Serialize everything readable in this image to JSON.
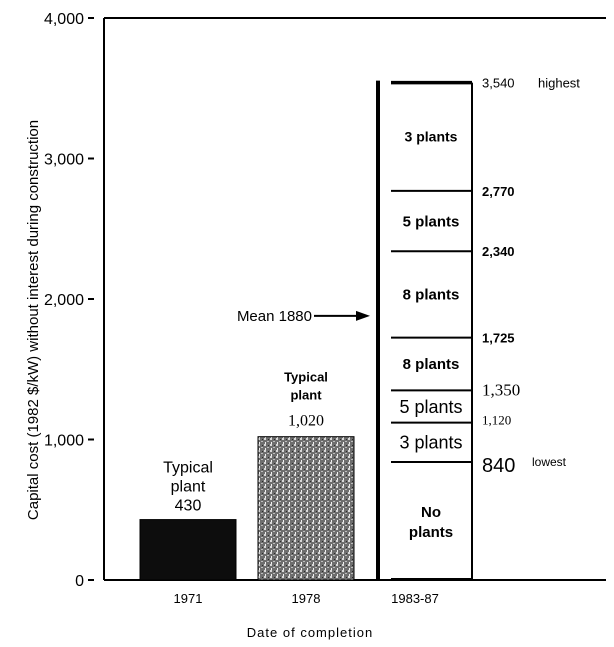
{
  "chart_data": {
    "type": "bar",
    "ylabel": "Capital cost (1982 $/kW) without interest during construction",
    "xlabel": "Date of completion",
    "ylim": [
      0,
      4000
    ],
    "yticks": [
      {
        "value": 0,
        "label": "0"
      },
      {
        "value": 1000,
        "label": "1,000"
      },
      {
        "value": 2000,
        "label": "2,000"
      },
      {
        "value": 3000,
        "label": "3,000"
      },
      {
        "value": 4000,
        "label": "4,000"
      }
    ],
    "categories": [
      "1971",
      "1978",
      "1983-87"
    ],
    "bars": [
      {
        "category": "1971",
        "value": 430,
        "label_line1": "Typical",
        "label_line2": "plant",
        "value_label": "430"
      },
      {
        "category": "1978",
        "value": 1020,
        "label_line1": "Typical",
        "label_line2": "plant",
        "value_label": "1,020"
      }
    ],
    "range_bar": {
      "category": "1983-87",
      "boundaries": [
        {
          "value": 3540,
          "label": "3,540",
          "note": "highest"
        },
        {
          "value": 2770,
          "label": "2,770"
        },
        {
          "value": 2340,
          "label": "2,340"
        },
        {
          "value": 1725,
          "label": "1,725"
        },
        {
          "value": 1350,
          "label": "1,350"
        },
        {
          "value": 1120,
          "label": "1,120"
        },
        {
          "value": 840,
          "label": "840",
          "note": "lowest"
        }
      ],
      "segments": [
        {
          "from": 2770,
          "to": 3540,
          "label": "3 plants"
        },
        {
          "from": 2340,
          "to": 2770,
          "label": "5 plants"
        },
        {
          "from": 1725,
          "to": 2340,
          "label": "8 plants"
        },
        {
          "from": 1350,
          "to": 1725,
          "label": "8 plants"
        },
        {
          "from": 1120,
          "to": 1350,
          "label": "5 plants"
        },
        {
          "from": 840,
          "to": 1120,
          "label": "3 plants"
        },
        {
          "from": 0,
          "to": 840,
          "label_line1": "No",
          "label_line2": "plants"
        }
      ],
      "mean": {
        "value": 1880,
        "label": "Mean 1880"
      }
    }
  }
}
